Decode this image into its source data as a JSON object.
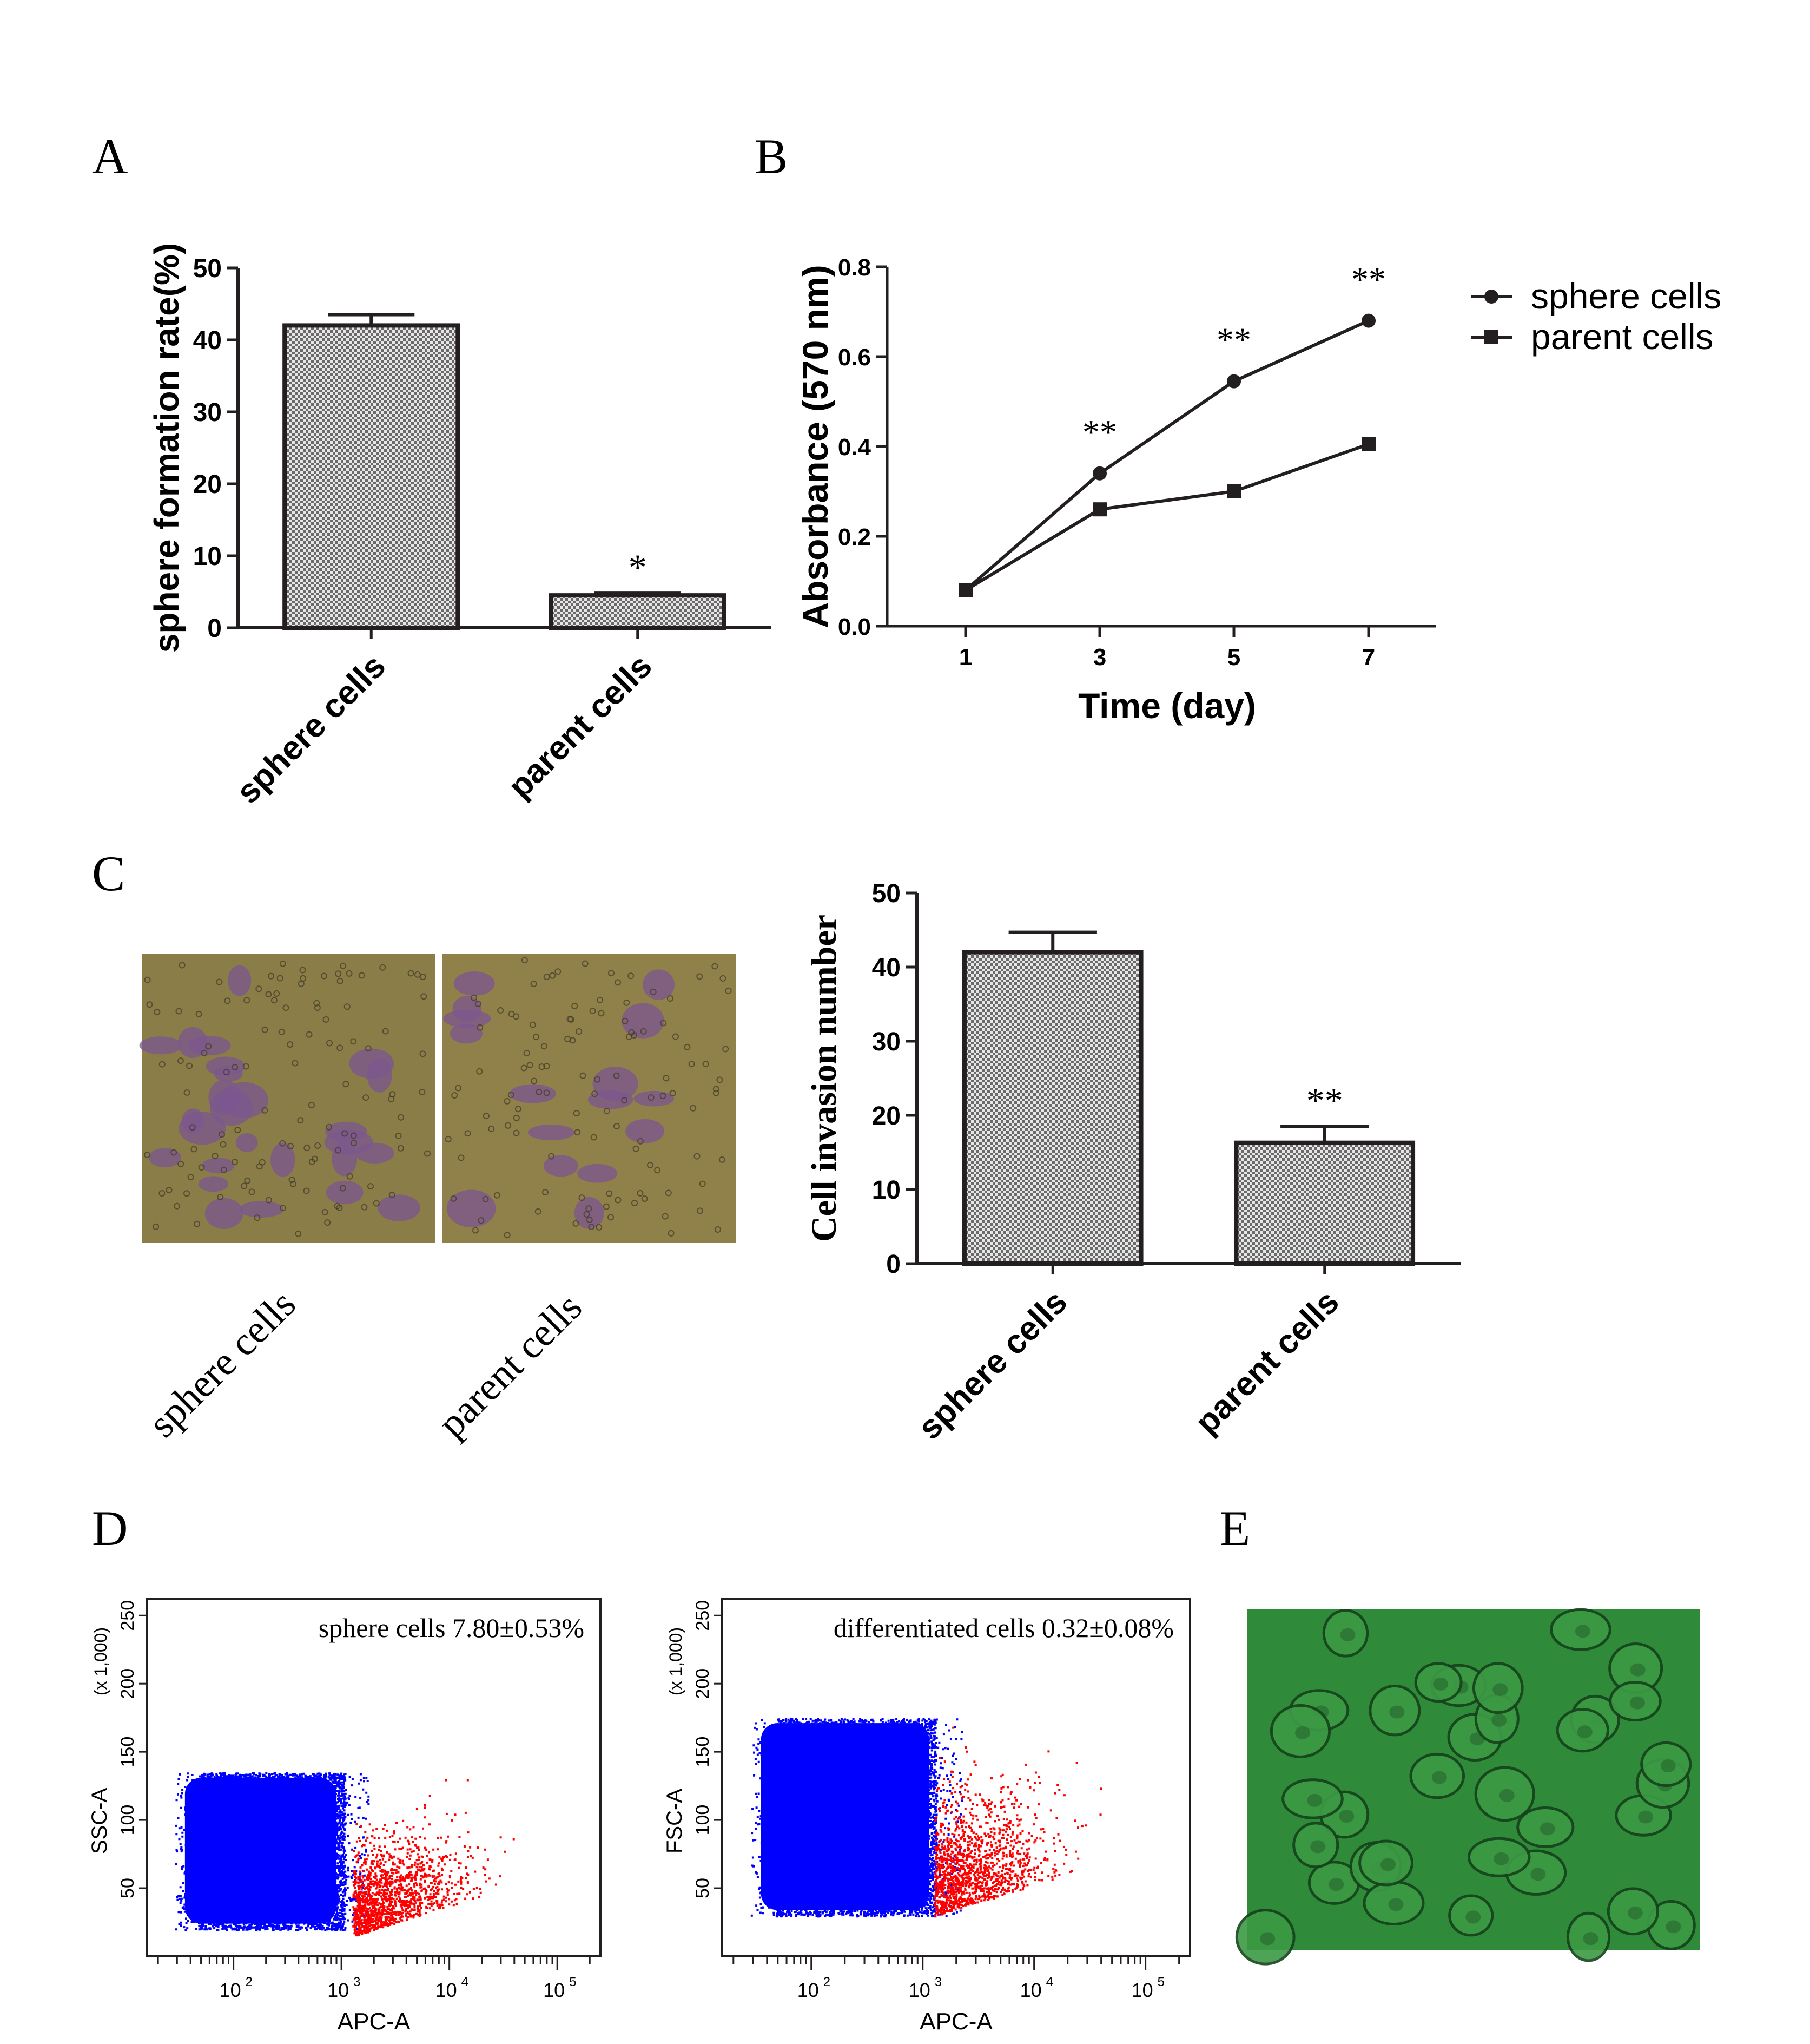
{
  "panels": {
    "A": "A",
    "B": "B",
    "C": "C",
    "D": "D",
    "E": "E"
  },
  "images": {
    "invasion_left_label": "sphere cells",
    "invasion_right_label": "parent cells"
  },
  "colors": {
    "bar_fill": "#cfcfcf",
    "bar_outline": "#231f20",
    "flow_main": "#0000ff",
    "flow_gated": "#ff0000",
    "invasion_bg": "#8a7d48",
    "invasion_cell": "#7b5590",
    "microscopy_bg": "#2f8a3a"
  },
  "chart_data": [
    {
      "id": "A",
      "type": "bar",
      "categories": [
        "sphere cells",
        "parent cells"
      ],
      "values": [
        42,
        4.5
      ],
      "errors": [
        1.5,
        0.3
      ],
      "significance": [
        "",
        "*"
      ],
      "ylabel": "sphere formation rate(%)",
      "ylim": [
        0,
        50
      ],
      "yticks": [
        "0",
        "10",
        "20",
        "30",
        "40",
        "50"
      ]
    },
    {
      "id": "B",
      "type": "line",
      "x": [
        "1",
        "3",
        "5",
        "7"
      ],
      "series": [
        {
          "name": "sphere cells",
          "marker": "circle",
          "values": [
            0.08,
            0.34,
            0.545,
            0.68
          ]
        },
        {
          "name": "parent cells",
          "marker": "square",
          "values": [
            0.08,
            0.26,
            0.3,
            0.405
          ]
        }
      ],
      "significance": [
        "",
        "**",
        "**",
        "**"
      ],
      "xlabel": "Time (day)",
      "ylabel": "Absorbance (570 nm)",
      "ylim": [
        0,
        0.8
      ],
      "yticks": [
        "0.0",
        "0.2",
        "0.4",
        "0.6",
        "0.8"
      ],
      "legend": "top-right"
    },
    {
      "id": "C",
      "type": "bar",
      "categories": [
        "sphere cells",
        "parent cells"
      ],
      "values": [
        42,
        16.3
      ],
      "errors": [
        2.7,
        2.2
      ],
      "significance": [
        "",
        "**"
      ],
      "ylabel": "Cell invasion number",
      "ylim": [
        0,
        50
      ],
      "yticks": [
        "0",
        "10",
        "20",
        "30",
        "40",
        "50"
      ]
    },
    {
      "id": "D1",
      "type": "scatter",
      "annotation": "sphere cells 7.80±0.53%",
      "xlabel": "APC-A",
      "ylabel": "SSC-A",
      "yunit": "(x 1,000)",
      "yticks": [
        "50",
        "100",
        "150",
        "200",
        "250"
      ],
      "xticks": [
        "10",
        "10",
        "10",
        "10"
      ],
      "xtick_exponents": [
        "2",
        "3",
        "4",
        "5"
      ],
      "main_population": {
        "x_log_range": [
          1.5,
          3.2
        ],
        "y_range": [
          20,
          135
        ]
      },
      "gated_population": {
        "x_log_range": [
          3.1,
          4.8
        ],
        "y_range": [
          15,
          130
        ]
      }
    },
    {
      "id": "D2",
      "type": "scatter",
      "annotation": "differentiated cells 0.32±0.08%",
      "xlabel": "APC-A",
      "ylabel": "FSC-A",
      "yunit": "(x 1,000)",
      "yticks": [
        "50",
        "100",
        "150",
        "200",
        "250"
      ],
      "xticks": [
        "10",
        "10",
        "10",
        "10"
      ],
      "xtick_exponents": [
        "2",
        "3",
        "4",
        "5"
      ],
      "main_population": {
        "x_log_range": [
          1.5,
          3.3
        ],
        "y_range": [
          30,
          175
        ]
      },
      "gated_population": {
        "x_log_range": [
          3.1,
          4.6
        ],
        "y_range": [
          30,
          180
        ]
      }
    }
  ]
}
